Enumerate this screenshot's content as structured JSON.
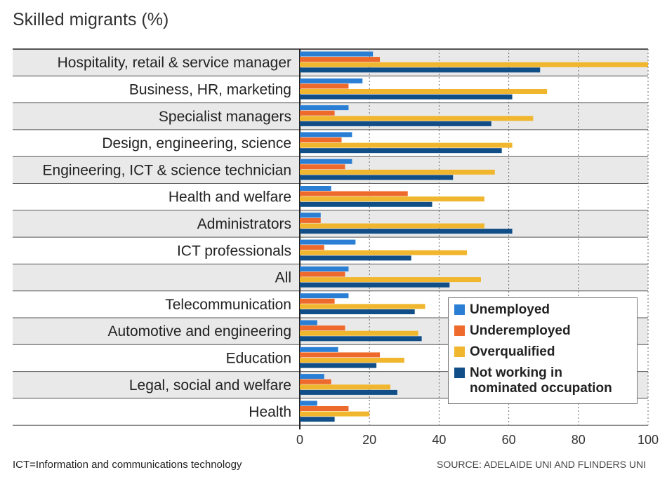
{
  "chart_data": {
    "type": "bar",
    "orientation": "horizontal",
    "title": "Skilled migrants (%)",
    "categories": [
      "Hospitality, retail & service manager",
      "Business, HR, marketing",
      "Specialist managers",
      "Design, engineering, science",
      "Engineering, ICT & science technician",
      "Health and welfare",
      "Administrators",
      "ICT professionals",
      "All",
      "Telecommunication",
      "Automotive and engineering",
      "Education",
      "Legal, social and welfare",
      "Health"
    ],
    "series": [
      {
        "name": "Unemployed",
        "color": "#2a7fd4",
        "values": [
          21,
          18,
          14,
          15,
          15,
          9,
          6,
          16,
          14,
          14,
          5,
          11,
          7,
          5
        ]
      },
      {
        "name": "Underemployed",
        "color": "#ee6a2c",
        "values": [
          23,
          14,
          10,
          12,
          13,
          31,
          6,
          7,
          13,
          10,
          13,
          23,
          9,
          14
        ]
      },
      {
        "name": "Overqualified",
        "color": "#f0b62e",
        "values": [
          100,
          71,
          67,
          61,
          56,
          53,
          53,
          48,
          52,
          36,
          34,
          30,
          26,
          20
        ]
      },
      {
        "name": "Not working in nominated occupation",
        "color": "#114d86",
        "values": [
          69,
          61,
          55,
          58,
          44,
          38,
          61,
          32,
          43,
          33,
          35,
          22,
          28,
          10
        ]
      }
    ],
    "xlim": [
      0,
      100
    ],
    "xticks": [
      0,
      20,
      40,
      60,
      80,
      100
    ],
    "grid": true,
    "legend_position": "bottom-right"
  },
  "note": "ICT=Information and communications technology",
  "source": "SOURCE: ADELAIDE UNI AND FLINDERS UNI",
  "legend": [
    "Unemployed",
    "Underemployed",
    "Overqualified",
    "Not working in",
    "nominated occupation"
  ]
}
